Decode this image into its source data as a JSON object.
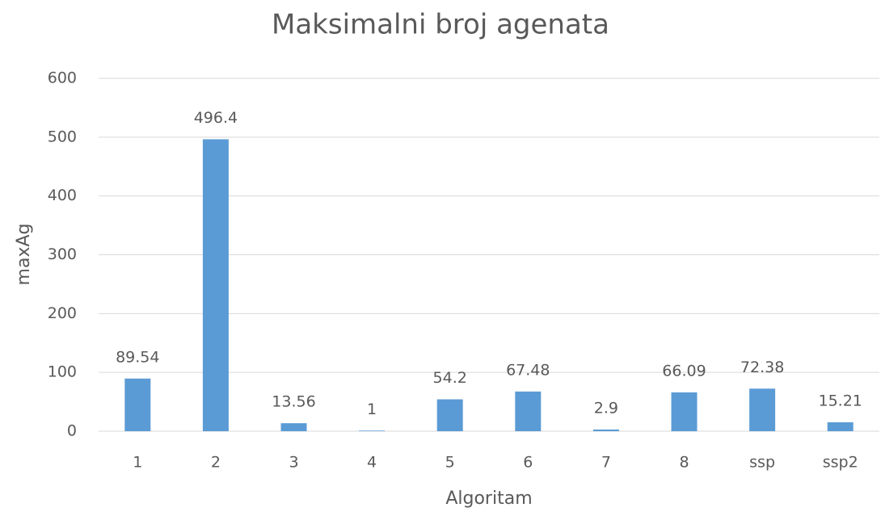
{
  "chart_data": {
    "type": "bar",
    "title": "Maksimalni broj agenata",
    "x_label": "Algoritam",
    "y_label": "maxAg",
    "categories": [
      "1",
      "2",
      "3",
      "4",
      "5",
      "6",
      "7",
      "8",
      "ssp",
      "ssp2"
    ],
    "values": [
      89.54,
      496.4,
      13.56,
      1,
      54.2,
      67.48,
      2.9,
      66.09,
      72.38,
      15.21
    ],
    "color": "#5b9bd5",
    "ylim": [
      0,
      600
    ],
    "yticks": [
      0,
      100,
      200,
      300,
      400,
      500,
      600
    ],
    "grid": true
  }
}
